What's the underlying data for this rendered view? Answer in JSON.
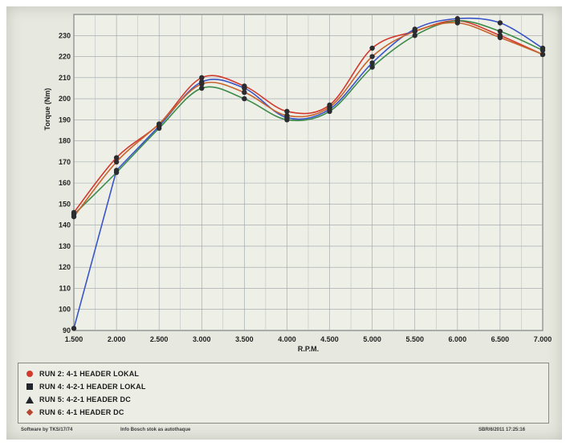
{
  "chart_data": {
    "type": "line",
    "title": "",
    "xlabel": "R.P.M.",
    "ylabel": "Torque (Nm)",
    "x": [
      1500,
      2000,
      2500,
      3000,
      3500,
      4000,
      4500,
      5000,
      5500,
      6000,
      6500,
      7000
    ],
    "x_tick_labels": [
      "1.500",
      "2.000",
      "2.500",
      "3.000",
      "3.500",
      "4.000",
      "4.500",
      "5.000",
      "5.500",
      "6.000",
      "6.500",
      "7.000"
    ],
    "xlim": [
      1500,
      7000
    ],
    "ylim": [
      90,
      240
    ],
    "y_ticks": [
      90,
      100,
      110,
      120,
      130,
      140,
      150,
      160,
      170,
      180,
      190,
      200,
      210,
      220,
      230
    ],
    "grid": true,
    "legend_position": "bottom",
    "series": [
      {
        "name": "RUN 2: 4-1 HEADER LOKAL",
        "color": "#d23a2e",
        "marker": "circle",
        "values": [
          146,
          172,
          188,
          210,
          206,
          194,
          197,
          224,
          232,
          237,
          230,
          221
        ]
      },
      {
        "name": "RUN 4: 4-2-1 HEADER LOKAL",
        "color": "#3d8a4a",
        "marker": "square",
        "values": [
          145,
          165,
          186,
          205,
          200,
          190,
          194,
          215,
          230,
          237,
          232,
          223
        ]
      },
      {
        "name": "RUN 5: 4-2-1 HEADER DC",
        "color": "#3a55c8",
        "marker": "triangle",
        "values": [
          91,
          166,
          187,
          208,
          205,
          191,
          195,
          217,
          233,
          238,
          236,
          224
        ]
      },
      {
        "name": "RUN 6: 4-1 HEADER DC",
        "color": "#c8632c",
        "marker": "diamond",
        "values": [
          144,
          170,
          188,
          207,
          203,
          192,
          196,
          220,
          232,
          236,
          229,
          221
        ]
      }
    ]
  },
  "footer": {
    "left_text": "Software by TKS/17/74",
    "middle_text": "Info Bosch stok as autothaque",
    "right_text": "SBR/6/2011 17:25:16"
  }
}
